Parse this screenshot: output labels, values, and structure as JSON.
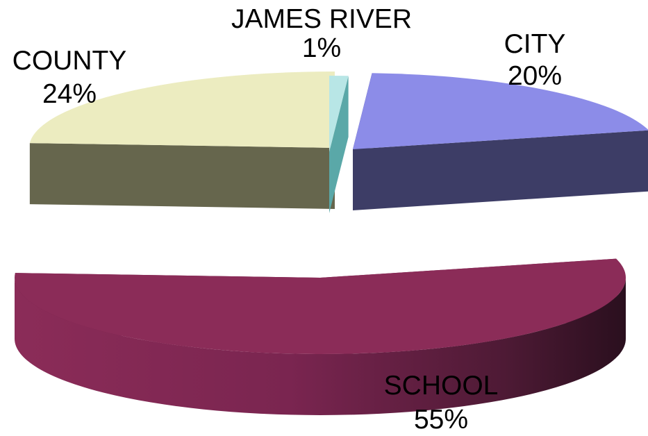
{
  "chart_data": {
    "type": "pie",
    "title": "",
    "exploded_3d": true,
    "slices": [
      {
        "label": "JAMES RIVER",
        "value": 1,
        "percent_label": "1%",
        "color": "#b8e6e6",
        "side_color": "#5aa8a8"
      },
      {
        "label": "CITY",
        "value": 20,
        "percent_label": "20%",
        "color": "#8c8ce8",
        "side_color": "#3d3d66"
      },
      {
        "label": "SCHOOL",
        "value": 55,
        "percent_label": "55%",
        "color": "#8b2c58",
        "side_color": "#6e2046"
      },
      {
        "label": "COUNTY",
        "value": 24,
        "percent_label": "24%",
        "color": "#ececc0",
        "side_color": "#66664d"
      }
    ]
  }
}
